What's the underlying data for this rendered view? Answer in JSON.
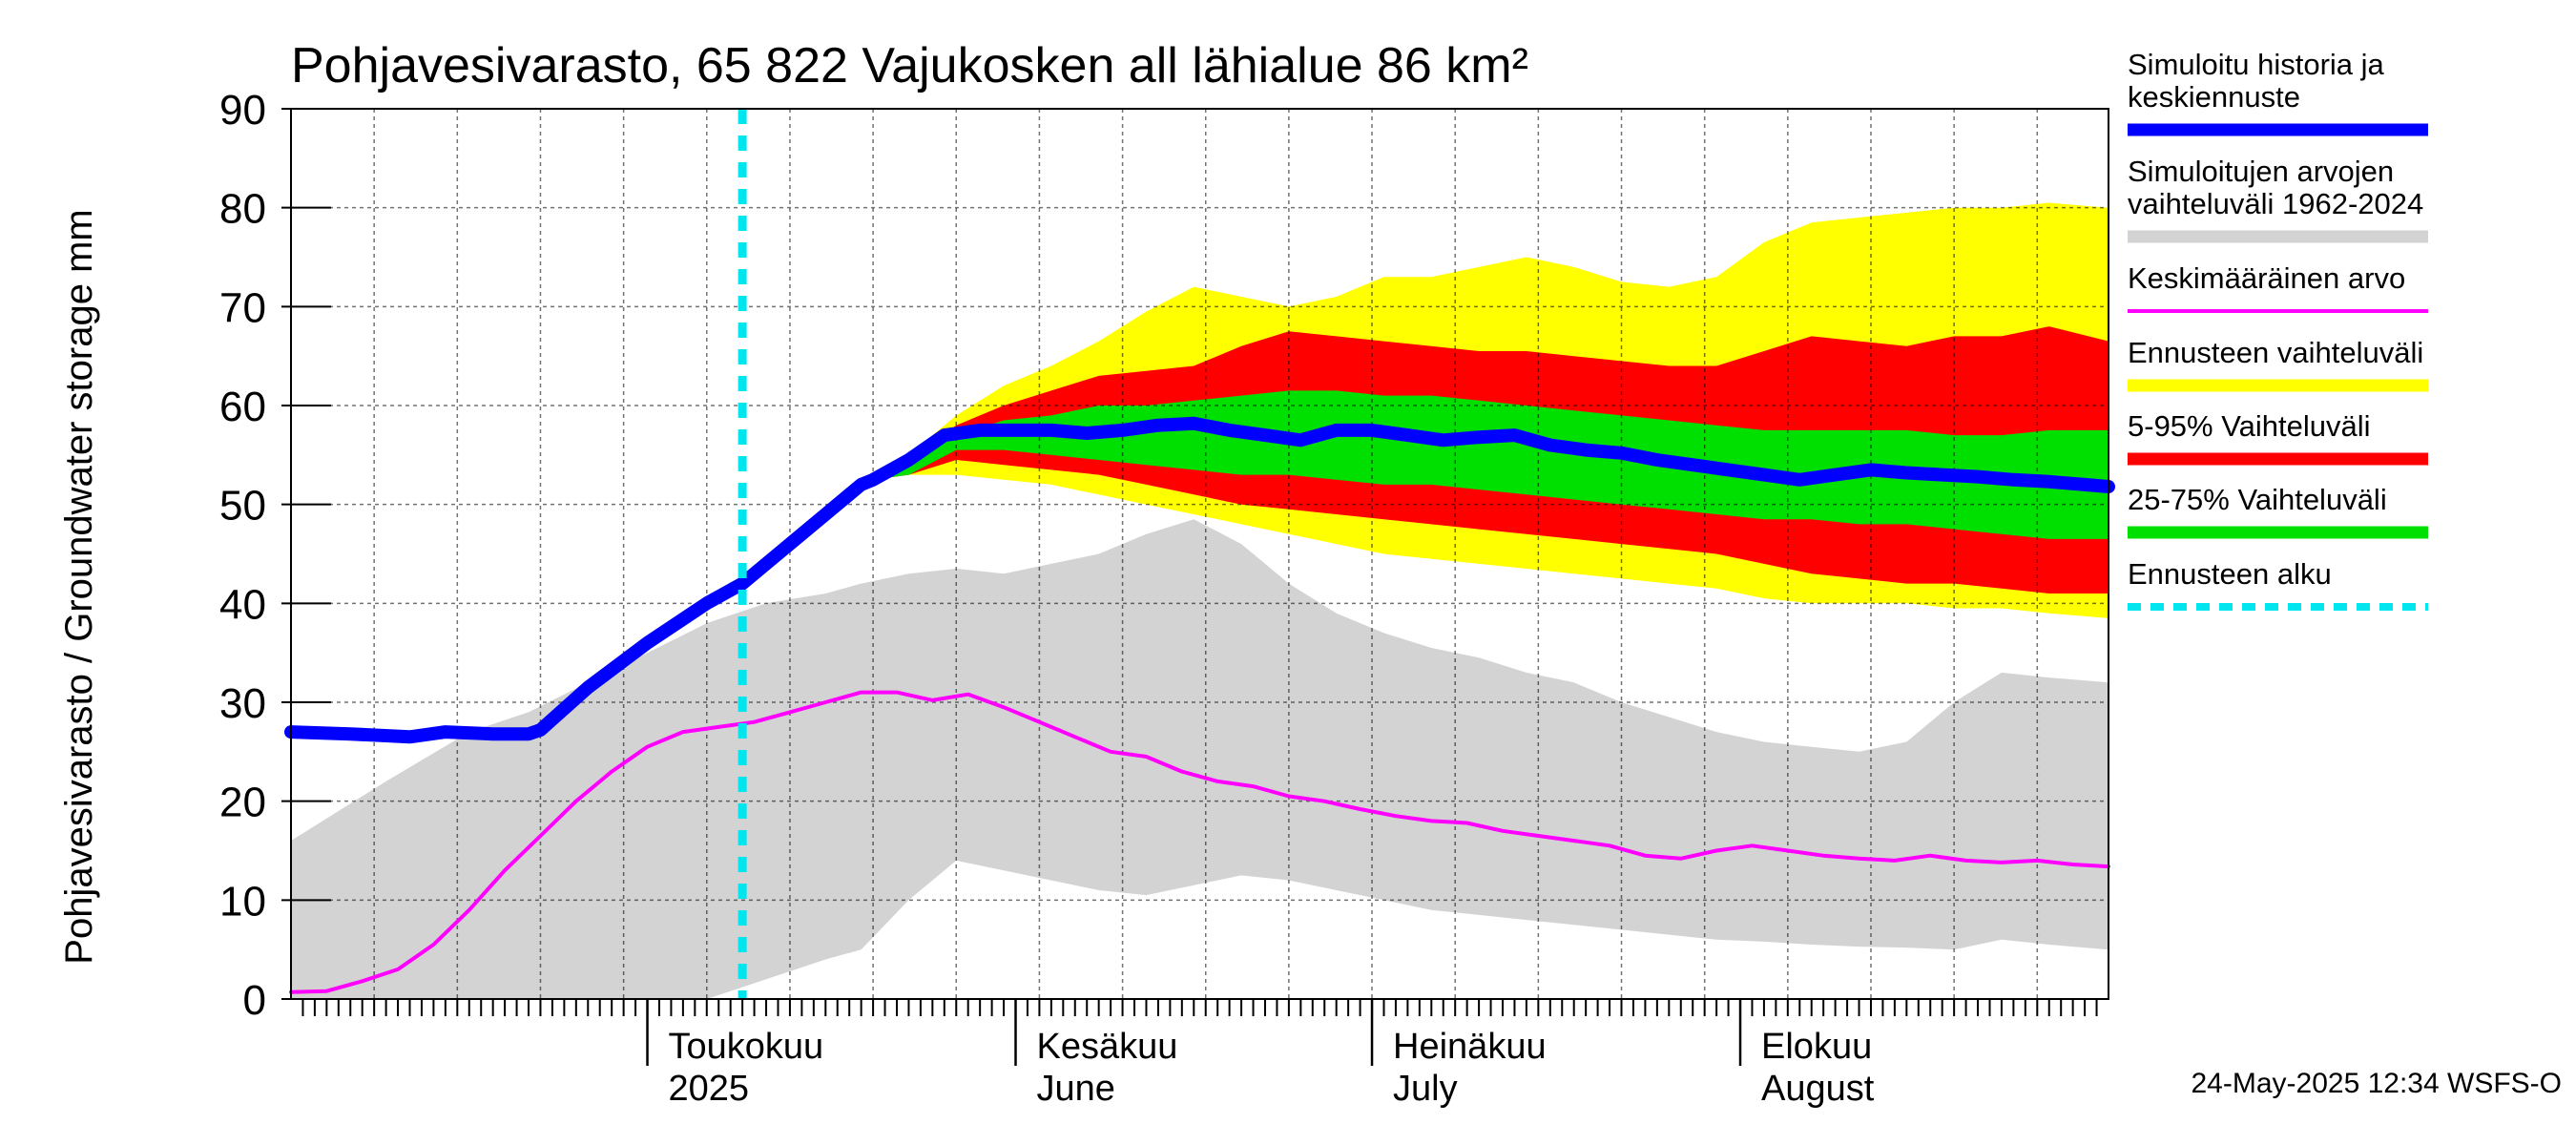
{
  "chart_data": {
    "type": "area",
    "title": "Pohjavesivarasto, 65 822 Vajukosken all lähialue 86 km²",
    "ylabel": "Pohjavesivarasto / Groundwater storage   mm",
    "ylim": [
      0,
      90
    ],
    "yticks": [
      0,
      10,
      20,
      30,
      40,
      50,
      60,
      70,
      80,
      90
    ],
    "x_unit": "day offset from 2025-04-01",
    "xlim": [
      0,
      153
    ],
    "forecast_start": 38,
    "month_labels": [
      {
        "day": 30,
        "fi": "Toukokuu",
        "en": "2025"
      },
      {
        "day": 61,
        "fi": "Kesäkuu",
        "en": "June"
      },
      {
        "day": 91,
        "fi": "Heinäkuu",
        "en": "July"
      },
      {
        "day": 122,
        "fi": "Elokuu",
        "en": "August"
      }
    ],
    "series": [
      {
        "name": "Simuloitujen arvojen vaihteluväli 1962-2024",
        "kind": "band",
        "color": "#d3d3d3",
        "x": [
          0,
          8,
          15,
          20,
          25,
          30,
          35,
          40,
          45,
          48,
          52,
          56,
          60,
          64,
          68,
          72,
          76,
          80,
          84,
          88,
          92,
          96,
          100,
          104,
          108,
          112,
          116,
          120,
          124,
          128,
          132,
          136,
          140,
          144,
          148,
          153
        ],
        "upper": [
          16,
          22,
          27,
          29,
          32,
          35,
          38,
          40,
          41,
          42,
          43,
          43.5,
          43,
          44,
          45,
          47,
          48.5,
          46,
          42,
          39,
          37,
          35.5,
          34.5,
          33,
          32,
          30,
          28.5,
          27,
          26,
          25.5,
          25,
          26,
          30,
          33,
          32.5,
          32
        ],
        "lower": [
          0,
          0,
          0,
          0,
          0,
          0,
          0,
          2,
          4,
          5,
          10,
          14,
          13,
          12,
          11,
          10.5,
          11.5,
          12.5,
          12,
          11,
          10,
          9,
          8.5,
          8,
          7.5,
          7,
          6.5,
          6,
          5.8,
          5.5,
          5.3,
          5.2,
          5,
          6,
          5.5,
          5
        ]
      },
      {
        "name": "Ennusteen vaihteluväli",
        "kind": "band",
        "color": "#ffff00",
        "x": [
          49,
          52,
          56,
          60,
          64,
          68,
          72,
          76,
          80,
          84,
          88,
          92,
          96,
          100,
          104,
          108,
          112,
          116,
          120,
          124,
          128,
          132,
          136,
          140,
          144,
          148,
          153
        ],
        "upper": [
          52.5,
          55,
          59,
          62,
          64,
          66.5,
          69.5,
          72,
          71,
          70,
          71,
          73,
          73,
          74,
          75,
          74,
          72.5,
          72,
          73,
          76.5,
          78.5,
          79,
          79.5,
          80,
          80,
          80.5,
          80
        ],
        "lower": [
          52.5,
          53,
          53,
          52.5,
          52,
          51,
          50,
          49,
          48,
          47,
          46,
          45,
          44.5,
          44,
          43.5,
          43,
          42.5,
          42,
          41.5,
          40.5,
          40,
          40,
          40,
          39.5,
          39.5,
          39,
          38.5
        ]
      },
      {
        "name": "5-95% Vaihteluväli",
        "kind": "band",
        "color": "#ff0000",
        "x": [
          49,
          52,
          56,
          60,
          64,
          68,
          72,
          76,
          80,
          84,
          88,
          92,
          96,
          100,
          104,
          108,
          112,
          116,
          120,
          124,
          128,
          132,
          136,
          140,
          144,
          148,
          153
        ],
        "upper": [
          52.5,
          54.5,
          58,
          60,
          61.5,
          63,
          63.5,
          64,
          66,
          67.5,
          67,
          66.5,
          66,
          65.5,
          65.5,
          65,
          64.5,
          64,
          64,
          65.5,
          67,
          66.5,
          66,
          67,
          67,
          68,
          66.5
        ],
        "lower": [
          52.5,
          53,
          54.5,
          54,
          53.5,
          53,
          52,
          51,
          50,
          49.5,
          49,
          48.5,
          48,
          47.5,
          47,
          46.5,
          46,
          45.5,
          45,
          44,
          43,
          42.5,
          42,
          42,
          41.5,
          41,
          41
        ]
      },
      {
        "name": "25-75% Vaihteluväli",
        "kind": "band",
        "color": "#00e000",
        "x": [
          49,
          52,
          56,
          60,
          64,
          68,
          72,
          76,
          80,
          84,
          88,
          92,
          96,
          100,
          104,
          108,
          112,
          116,
          120,
          124,
          128,
          132,
          136,
          140,
          144,
          148,
          153
        ],
        "upper": [
          52.5,
          54,
          57,
          58.5,
          59,
          60,
          60,
          60.5,
          61,
          61.5,
          61.5,
          61,
          61,
          60.5,
          60,
          59.5,
          59,
          58.5,
          58,
          57.5,
          57.5,
          57.5,
          57.5,
          57,
          57,
          57.5,
          57.5
        ],
        "lower": [
          52.5,
          53,
          55.5,
          55.5,
          55,
          54.5,
          54,
          53.5,
          53,
          53,
          52.5,
          52,
          52,
          51.5,
          51,
          50.5,
          50,
          49.5,
          49,
          48.5,
          48.5,
          48,
          48,
          47.5,
          47,
          46.5,
          46.5
        ]
      },
      {
        "name": "Keskimääräinen arvo",
        "kind": "line",
        "color": "#ff00ff",
        "x": [
          0,
          3,
          6,
          9,
          12,
          15,
          18,
          21,
          24,
          27,
          30,
          33,
          36,
          39,
          42,
          45,
          48,
          51,
          54,
          57,
          60,
          63,
          66,
          69,
          72,
          75,
          78,
          81,
          84,
          87,
          90,
          93,
          96,
          99,
          102,
          105,
          108,
          111,
          114,
          117,
          120,
          123,
          126,
          129,
          132,
          135,
          138,
          141,
          144,
          147,
          150,
          153
        ],
        "y": [
          0.7,
          0.8,
          1.8,
          3,
          5.5,
          9,
          13,
          16.5,
          20,
          23,
          25.5,
          27,
          27.5,
          28,
          29,
          30,
          31,
          31,
          30.2,
          30.8,
          29.5,
          28,
          26.5,
          25,
          24.5,
          23,
          22,
          21.5,
          20.5,
          20,
          19.2,
          18.5,
          18,
          17.8,
          17,
          16.5,
          16,
          15.5,
          14.5,
          14.2,
          15,
          15.5,
          15,
          14.5,
          14.2,
          14,
          14.5,
          14,
          13.8,
          14,
          13.6,
          13.4
        ]
      },
      {
        "name": "Simuloitu historia ja keskiennuste",
        "kind": "line",
        "color": "#0000ff",
        "x": [
          0,
          5,
          10,
          13,
          17,
          20,
          21,
          25,
          30,
          35,
          38,
          40,
          45,
          48,
          49,
          52,
          55,
          58,
          61,
          64,
          67,
          70,
          73,
          76,
          79,
          82,
          85,
          88,
          91,
          94,
          97,
          100,
          103,
          106,
          109,
          112,
          115,
          118,
          121,
          124,
          127,
          130,
          133,
          136,
          139,
          142,
          145,
          148,
          151,
          153
        ],
        "y": [
          27,
          26.8,
          26.5,
          27,
          26.8,
          26.8,
          27.2,
          31.5,
          36,
          40,
          42,
          44,
          49,
          52,
          52.5,
          54.5,
          57,
          57.5,
          57.5,
          57.5,
          57.2,
          57.5,
          58,
          58.2,
          57.5,
          57,
          56.5,
          57.5,
          57.5,
          57,
          56.5,
          56.8,
          57,
          56,
          55.5,
          55.2,
          54.5,
          54,
          53.5,
          53,
          52.5,
          53,
          53.5,
          53.2,
          53,
          52.8,
          52.5,
          52.3,
          52,
          51.8
        ]
      },
      {
        "name": "Ennusteen alku",
        "kind": "vline",
        "color": "#00e5ee",
        "x": [
          38
        ]
      }
    ],
    "legend": [
      {
        "label": "Simuloitu historia ja keskiennuste",
        "color": "#0000ff",
        "style": "thick"
      },
      {
        "label": "Simuloitujen arvojen vaihteluväli 1962-2024",
        "color": "#d3d3d3",
        "style": "thick"
      },
      {
        "label": "Keskimääräinen arvo",
        "color": "#ff00ff",
        "style": "thin"
      },
      {
        "label": "Ennusteen vaihteluväli",
        "color": "#ffff00",
        "style": "thick"
      },
      {
        "label": "5-95% Vaihteluväli",
        "color": "#ff0000",
        "style": "thick"
      },
      {
        "label": "25-75% Vaihteluväli",
        "color": "#00e000",
        "style": "thick"
      },
      {
        "label": "Ennusteen alku",
        "color": "#00e5ee",
        "style": "dashed"
      }
    ],
    "timestamp": "24-May-2025 12:34 WSFS-O"
  }
}
